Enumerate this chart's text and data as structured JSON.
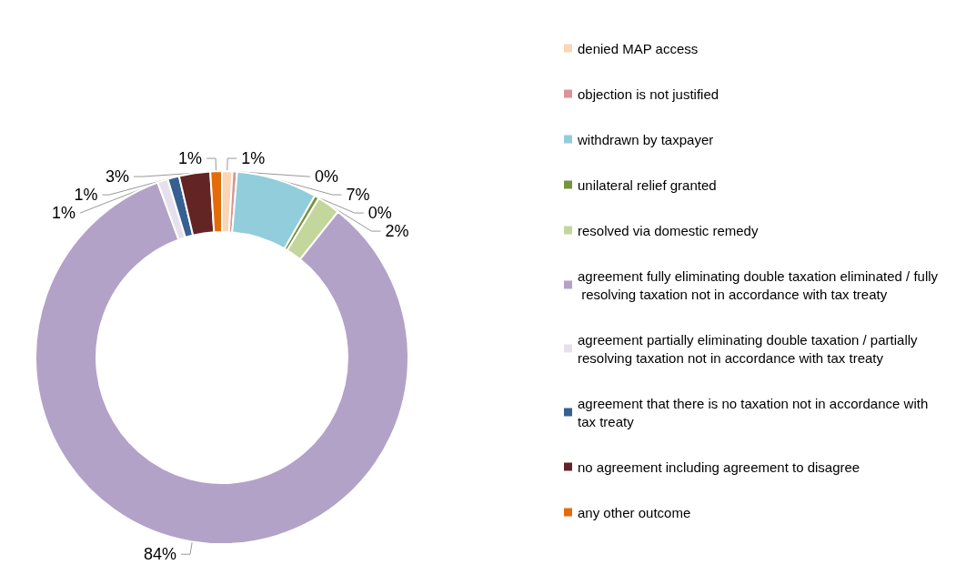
{
  "chart_data": {
    "type": "donut",
    "categories": [
      "denied MAP access",
      "objection is not justified",
      "withdrawn by taxpayer",
      "unilateral relief granted",
      "resolved via domestic remedy",
      "agreement fully eliminating double taxation eliminated / fully resolving taxation not in accordance with tax treaty",
      "agreement partially eliminating double taxation / partially resolving taxation not in accordance with tax treaty",
      "agreement that there is no taxation not in accordance with tax treaty",
      "no agreement including agreement to disagree",
      "any other outcome"
    ],
    "values": [
      0.9,
      0.4,
      7.0,
      0.4,
      2.0,
      83.7,
      0.9,
      1.0,
      2.7,
      1.0
    ],
    "value_labels": [
      "1%",
      "0%",
      "7%",
      "0%",
      "2%",
      "84%",
      "1%",
      "1%",
      "3%",
      "1%"
    ],
    "colors": [
      "#fcd5b5",
      "#d99594",
      "#92cddc",
      "#77933c",
      "#c3d69b",
      "#b3a2c7",
      "#e6e0ec",
      "#366092",
      "#632523",
      "#e36c09"
    ],
    "legend": "right"
  }
}
